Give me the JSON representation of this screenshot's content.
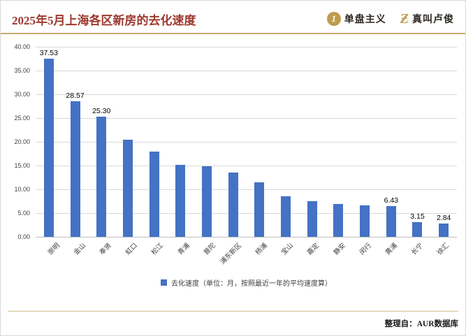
{
  "header": {
    "title": "2025年5月上海各区新房的去化速度",
    "brand1": {
      "icon": "1",
      "label": "单盘主义"
    },
    "brand2": {
      "icon": "Ƶ",
      "label": "真叫卢俊"
    }
  },
  "chart_data": {
    "type": "bar",
    "title": "2025年5月上海各区新房的去化速度",
    "categories": [
      "崇明",
      "金山",
      "奉贤",
      "虹口",
      "松江",
      "青浦",
      "普陀",
      "浦东新区",
      "杨浦",
      "宝山",
      "嘉定",
      "静安",
      "闵行",
      "黄浦",
      "长宁",
      "徐汇"
    ],
    "values": [
      37.53,
      28.57,
      25.3,
      20.5,
      18.0,
      15.2,
      14.9,
      13.6,
      11.5,
      8.6,
      7.5,
      6.9,
      6.6,
      6.43,
      3.15,
      2.84
    ],
    "data_labels": [
      "37.53",
      "28.57",
      "25.30",
      "",
      "",
      "",
      "",
      "",
      "",
      "",
      "",
      "",
      "",
      "6.43",
      "3.15",
      "2.84"
    ],
    "xlabel": "",
    "ylabel": "",
    "ylim": [
      0,
      40
    ],
    "ytick_step": 5,
    "yticks": [
      "0.00",
      "5.00",
      "10.00",
      "15.00",
      "20.00",
      "25.00",
      "30.00",
      "35.00",
      "40.00"
    ],
    "grid": true,
    "legend_position": "bottom",
    "legend": "去化速度（单位：月，按照最近一年的平均速度算）",
    "bar_color": "#4472c4"
  },
  "footer": {
    "credit": "整理自：AUR数据库"
  },
  "colors": {
    "title": "#9d3a30",
    "gold": "#bf9b4e",
    "bar": "#4472c4",
    "grid": "#d9d9d9"
  }
}
